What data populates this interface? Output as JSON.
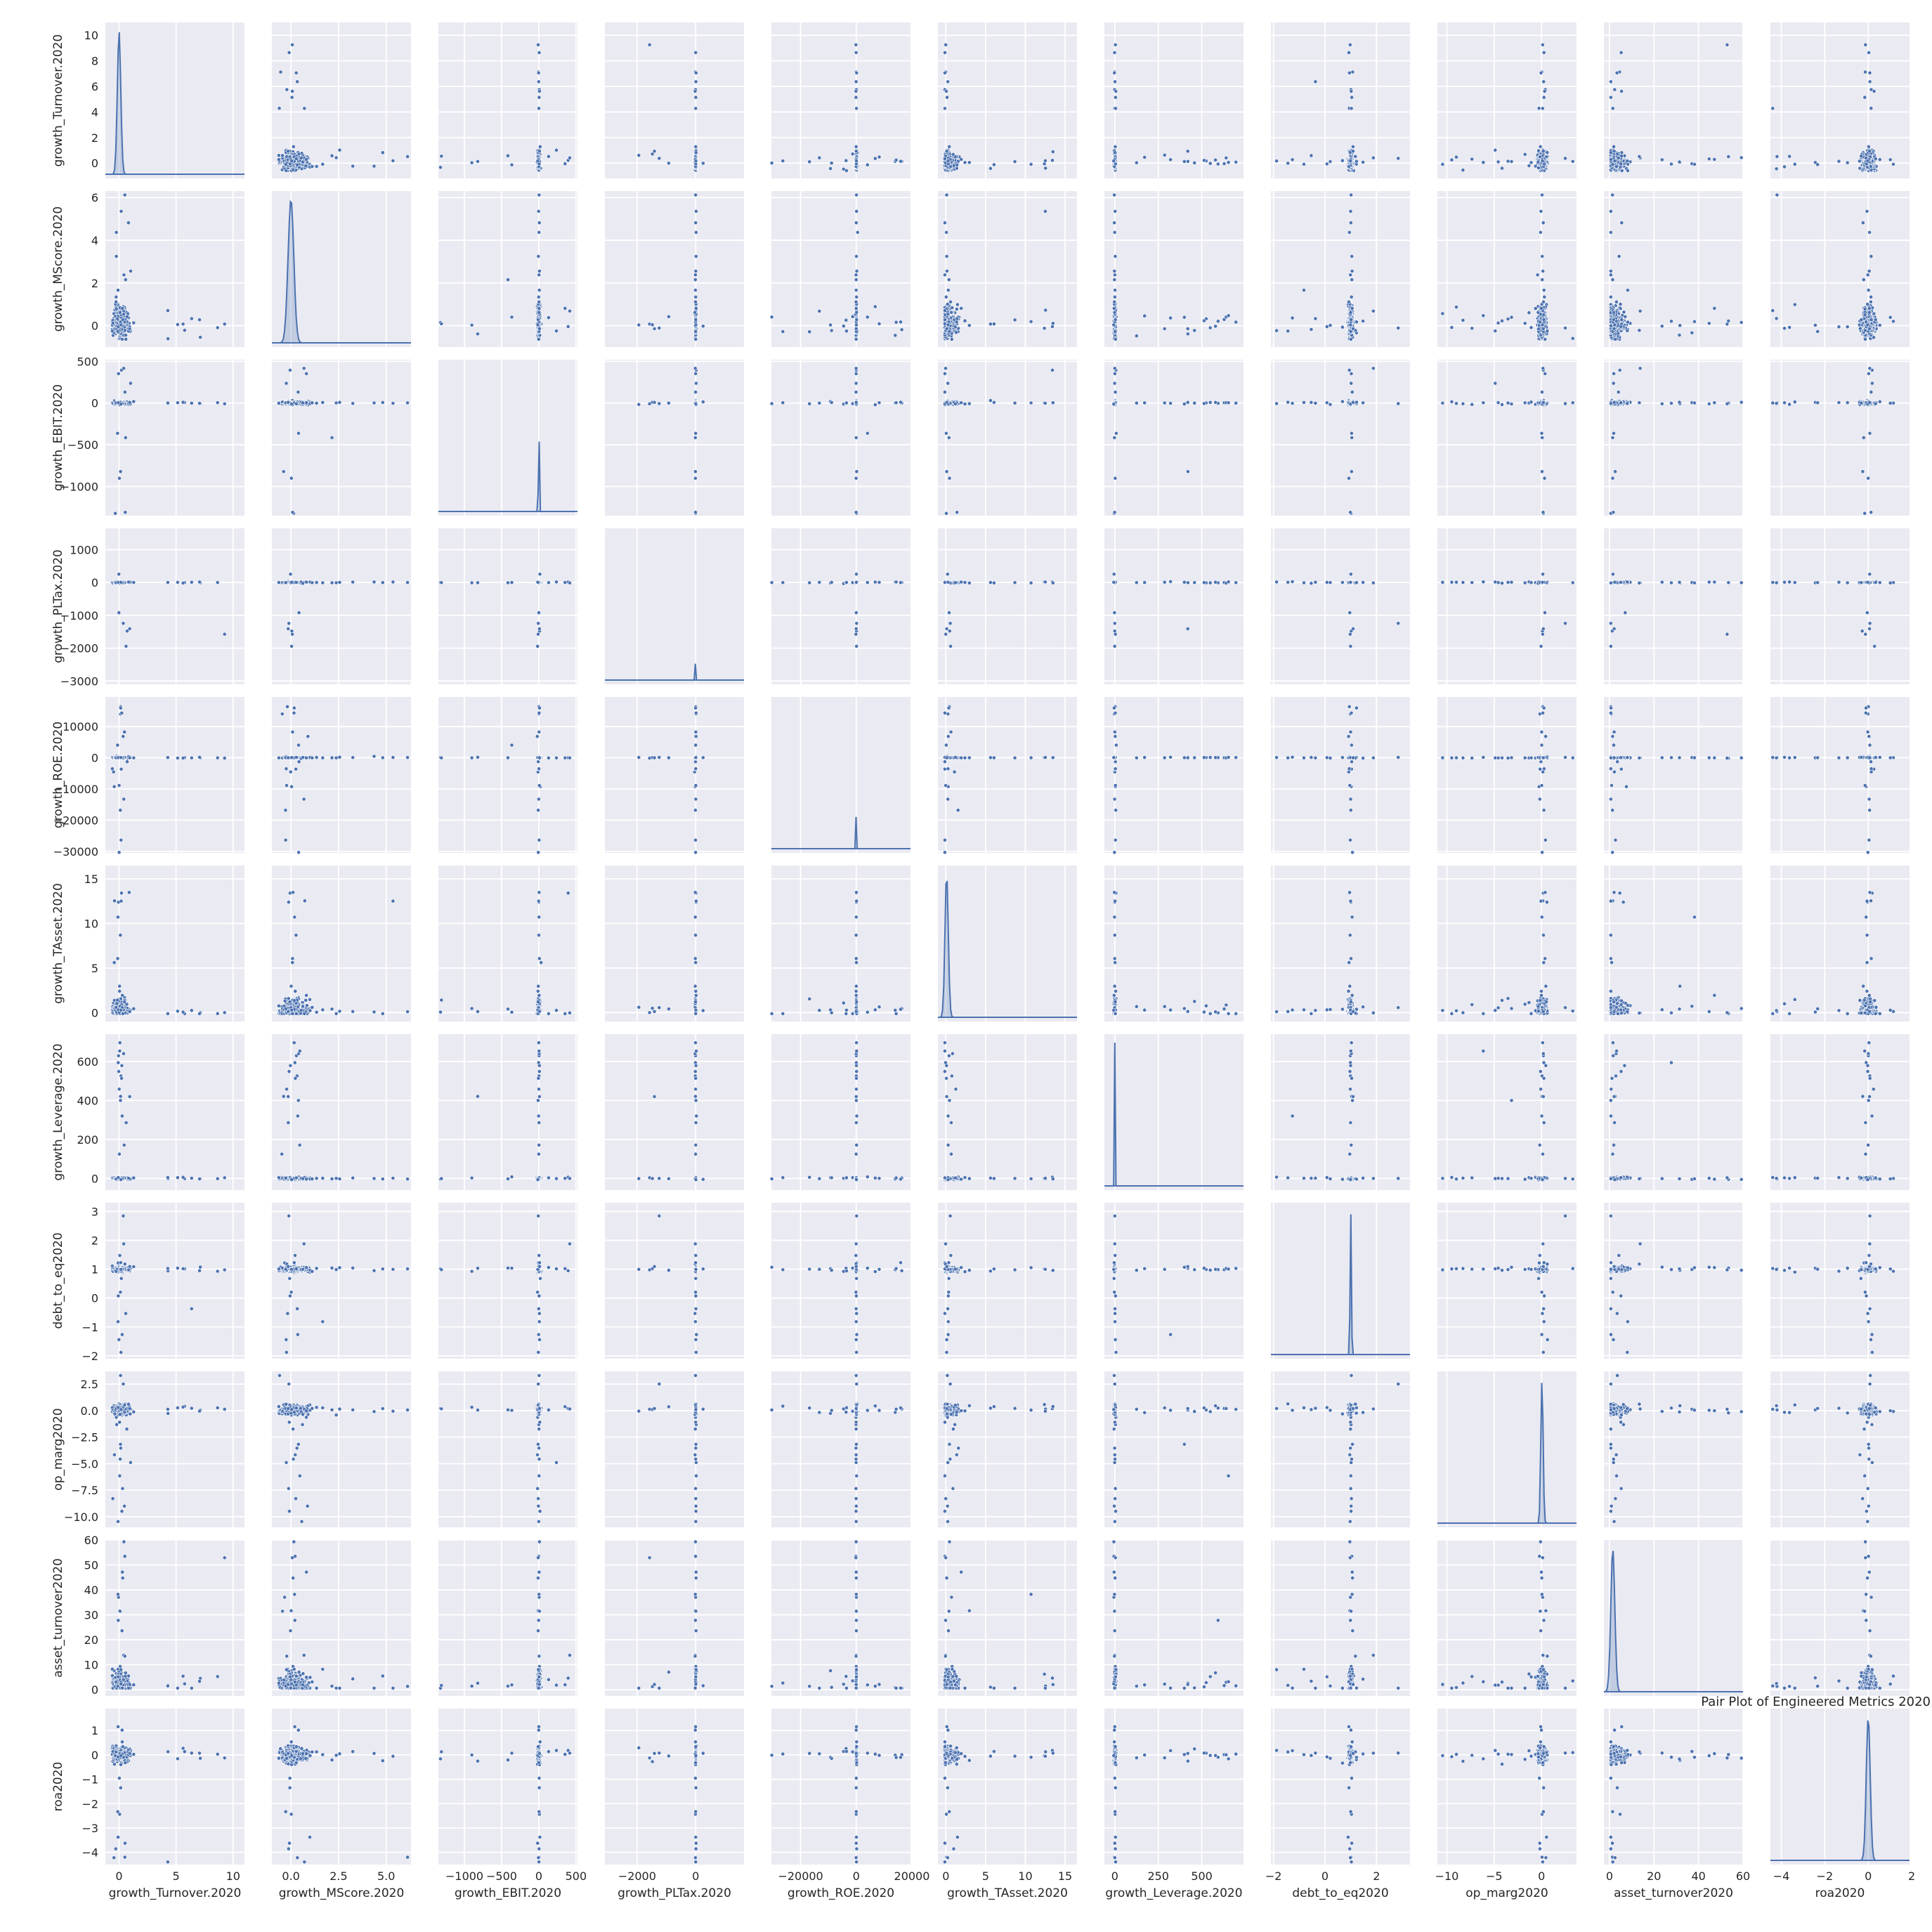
{
  "chart_data": {
    "type": "scatter",
    "title": "Pair Plot of Engineered Metrics 2020",
    "kind": "pairplot",
    "diagonal": "kde",
    "grid": true,
    "color": "#4c72b0",
    "background": "#eaeaf2",
    "variables": [
      {
        "name": "growth_Turnover.2020",
        "range": [
          -1.2,
          11
        ],
        "ticks": [
          0,
          2,
          4,
          6,
          8,
          10
        ],
        "xticks": [
          0,
          5,
          10
        ],
        "mode": 0.0,
        "spread": 0.25
      },
      {
        "name": "growth_MScore.2020",
        "range": [
          -1.0,
          6.3
        ],
        "ticks": [
          0,
          2,
          4,
          6
        ],
        "xticks": [
          0.0,
          2.5,
          5.0
        ],
        "xtick_labels": [
          "0.0",
          "2.5",
          "5.0"
        ],
        "mode": 0.0,
        "spread": 0.25
      },
      {
        "name": "growth_EBIT.2020",
        "range": [
          -1350,
          520
        ],
        "ticks": [
          -1000,
          -500,
          0,
          500
        ],
        "xticks": [
          -1000,
          -500,
          0,
          500
        ],
        "mode": 0,
        "spread": 8
      },
      {
        "name": "growth_PLTax.2020",
        "range": [
          -3100,
          1650
        ],
        "ticks": [
          -3000,
          -2000,
          -1000,
          0,
          1000
        ],
        "xticks": [
          -2000,
          0
        ],
        "mode": 0,
        "spread": 10
      },
      {
        "name": "growth_ROE.2020",
        "range": [
          -30500,
          19500
        ],
        "ticks": [
          -30000,
          -20000,
          -10000,
          0,
          10000,
          20000
        ],
        "xticks": [
          -20000,
          0,
          20000
        ],
        "mode": 0,
        "spread": 80
      },
      {
        "name": "growth_TAsset.2020",
        "range": [
          -1.0,
          16.5
        ],
        "ticks": [
          0,
          5,
          10,
          15
        ],
        "xticks": [
          0,
          5,
          10,
          15
        ],
        "mode": 0.1,
        "spread": 0.35
      },
      {
        "name": "growth_Leverage.2020",
        "range": [
          -60,
          740
        ],
        "ticks": [
          0,
          200,
          400,
          600
        ],
        "xticks": [
          0,
          250,
          500
        ],
        "mode": 0,
        "spread": 3
      },
      {
        "name": "debt_to_eq2020",
        "range": [
          -2.1,
          3.3
        ],
        "ticks": [
          -2,
          -1,
          0,
          1,
          2,
          3
        ],
        "xticks": [
          -2,
          0,
          2
        ],
        "mode": 1.0,
        "spread": 0.04
      },
      {
        "name": "op_marg2020",
        "range": [
          -11,
          3.7
        ],
        "ticks": [
          2.5,
          0.0,
          -2.5,
          -5.0,
          -7.5,
          -10.0
        ],
        "tick_labels": [
          "2.5",
          "0.0",
          "−2.5",
          "−5.0",
          "−7.5",
          "−10.0"
        ],
        "xticks": [
          -10,
          -5,
          0
        ],
        "mode": 0.05,
        "spread": 0.2
      },
      {
        "name": "asset_turnover2020",
        "range": [
          -2.5,
          60
        ],
        "ticks": [
          0,
          10,
          20,
          30,
          40,
          50,
          60
        ],
        "xticks": [
          0,
          20,
          40,
          60
        ],
        "mode": 1.5,
        "spread": 1.5
      },
      {
        "name": "roa2020",
        "range": [
          -4.5,
          1.9
        ],
        "ticks": [
          1,
          0,
          -1,
          -2,
          -3,
          -4
        ],
        "xticks": [
          -4,
          -2,
          0,
          2
        ],
        "mode": 0.0,
        "spread": 0.15
      }
    ]
  }
}
